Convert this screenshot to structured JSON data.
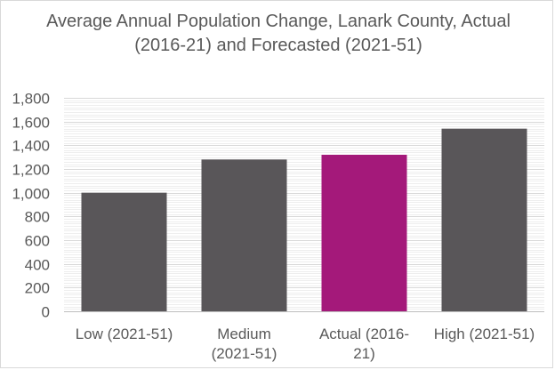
{
  "chart_data": {
    "type": "bar",
    "title": "Average Annual Population Change, Lanark County, Actual (2016-21) and Forecasted (2021-51)",
    "categories": [
      "Low (2021-51)",
      "Medium (2021-51)",
      "Actual (2016-21)",
      "High (2021-51)"
    ],
    "values": [
      1000,
      1280,
      1320,
      1540
    ],
    "ylim": [
      0,
      1800
    ],
    "y_ticks": [
      "0",
      "200",
      "400",
      "600",
      "800",
      "1,000",
      "1,200",
      "1,400",
      "1,600",
      "1,800"
    ],
    "grid": true,
    "legend": "none",
    "colors": {
      "default_bar": "#595659",
      "highlight_bar": "#a4197a",
      "gridline": "#d9d9d9",
      "axis": "#bfbfbf",
      "text": "#595959"
    },
    "highlight_category": "Actual (2016-21)"
  }
}
